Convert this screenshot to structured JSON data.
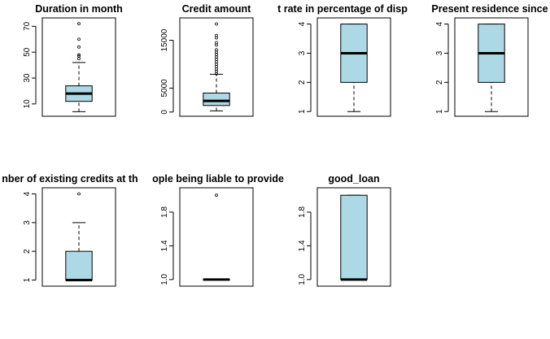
{
  "colors": {
    "box_fill": "#add8e6",
    "stroke": "#000000",
    "background": "#ffffff"
  },
  "chart_data": [
    {
      "type": "boxplot",
      "title": "Duration in month",
      "yticks": [
        10,
        30,
        50,
        70
      ],
      "ylim": [
        3,
        74
      ],
      "box": {
        "whisker_low": 4,
        "q1": 12,
        "median": 18,
        "q3": 24,
        "whisker_high": 42
      },
      "outliers": [
        45,
        47,
        48,
        54,
        60,
        72
      ]
    },
    {
      "type": "boxplot",
      "title": "Credit amount",
      "yticks": [
        0,
        5000,
        15000
      ],
      "ylim": [
        -200,
        19000
      ],
      "box": {
        "whisker_low": 250,
        "q1": 1366,
        "median": 2320,
        "q3": 3972,
        "whisker_high": 7900
      },
      "outliers": [
        8000,
        8500,
        9000,
        9500,
        10000,
        10500,
        11000,
        11500,
        12000,
        12500,
        13000,
        14000,
        14500,
        15500,
        16000,
        18400
      ]
    },
    {
      "type": "boxplot",
      "title": "t rate in percentage of disp",
      "yticks": [
        1.0,
        2.0,
        3.0,
        4.0
      ],
      "ylim": [
        0.95,
        4.1
      ],
      "box": {
        "whisker_low": 1,
        "q1": 2,
        "median": 3,
        "q3": 4,
        "whisker_high": 4
      },
      "outliers": []
    },
    {
      "type": "boxplot",
      "title": "Present residence since",
      "yticks": [
        1.0,
        2.0,
        3.0,
        4.0
      ],
      "ylim": [
        0.95,
        4.1
      ],
      "box": {
        "whisker_low": 1,
        "q1": 2,
        "median": 3,
        "q3": 4,
        "whisker_high": 4
      },
      "outliers": []
    },
    {
      "type": "boxplot",
      "title": "nber of existing credits at th",
      "yticks": [
        1.0,
        2.0,
        3.0,
        4.0
      ],
      "ylim": [
        0.9,
        4.1
      ],
      "box": {
        "whisker_low": 1,
        "q1": 1,
        "median": 1,
        "q3": 2,
        "whisker_high": 3
      },
      "outliers": [
        4
      ]
    },
    {
      "type": "boxplot",
      "title": "ople being liable to provide",
      "yticks": [
        1.0,
        1.4,
        1.8
      ],
      "ylim": [
        0.96,
        2.05
      ],
      "box": {
        "whisker_low": 1,
        "q1": 1,
        "median": 1,
        "q3": 1,
        "whisker_high": 1
      },
      "outliers": [
        2
      ]
    },
    {
      "type": "boxplot",
      "title": "good_loan",
      "yticks": [
        1.0,
        1.4,
        1.8
      ],
      "ylim": [
        0.96,
        2.05
      ],
      "box": {
        "whisker_low": 1,
        "q1": 1,
        "median": 1,
        "q3": 2,
        "whisker_high": 2
      },
      "outliers": []
    }
  ]
}
